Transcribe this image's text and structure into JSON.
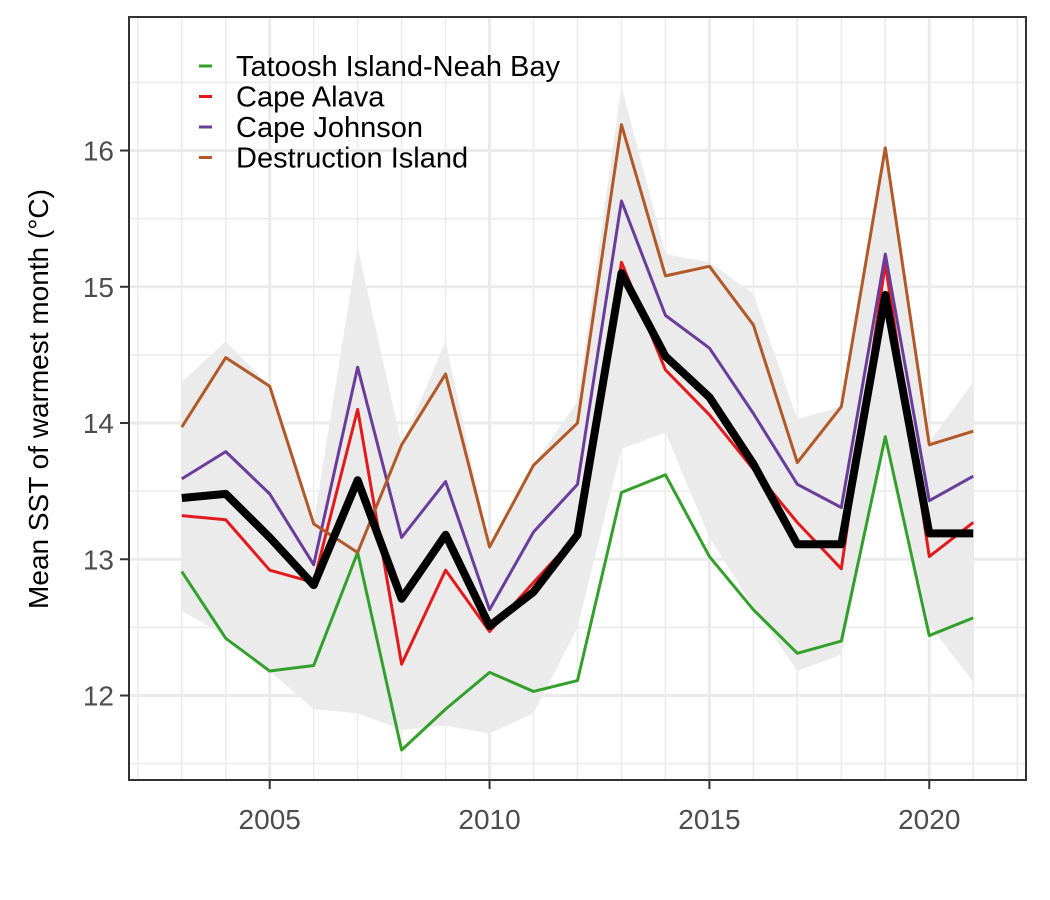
{
  "chart_data": {
    "type": "line",
    "title": "",
    "xlabel": "",
    "ylabel": "Mean SST of warmest month (°C)",
    "xlim": [
      2001.8,
      2022.2
    ],
    "ylim": [
      11.38,
      16.98
    ],
    "x_ticks": [
      2005,
      2010,
      2015,
      2020
    ],
    "y_ticks": [
      12,
      13,
      14,
      15,
      16
    ],
    "grid": true,
    "legend_position": "top-left inside",
    "x": [
      2003,
      2004,
      2005,
      2006,
      2007,
      2008,
      2009,
      2010,
      2011,
      2012,
      2013,
      2014,
      2015,
      2016,
      2017,
      2018,
      2019,
      2020,
      2021
    ],
    "series": [
      {
        "name": "Tatoosh Island-Neah Bay",
        "color": "#33a02c",
        "values": [
          12.91,
          12.42,
          12.18,
          12.22,
          13.05,
          11.6,
          11.9,
          12.17,
          12.03,
          12.11,
          13.49,
          13.62,
          13.02,
          12.63,
          12.31,
          12.4,
          13.9,
          12.44,
          12.57
        ]
      },
      {
        "name": "Cape Alava",
        "color": "#e31a1c",
        "values": [
          13.32,
          13.29,
          12.92,
          12.83,
          14.1,
          12.23,
          12.92,
          12.47,
          12.83,
          13.18,
          15.18,
          14.39,
          14.06,
          13.66,
          13.27,
          12.93,
          15.17,
          13.02,
          13.27
        ]
      },
      {
        "name": "Cape Johnson",
        "color": "#6a3d9a",
        "values": [
          13.59,
          13.79,
          13.48,
          12.96,
          14.41,
          13.16,
          13.57,
          12.63,
          13.2,
          13.55,
          15.63,
          14.79,
          14.55,
          14.07,
          13.55,
          13.38,
          15.24,
          13.43,
          13.61
        ]
      },
      {
        "name": "Destruction Island",
        "color": "#b15928",
        "values": [
          13.97,
          14.48,
          14.27,
          13.26,
          13.05,
          13.84,
          14.36,
          13.09,
          13.69,
          14.0,
          16.19,
          15.08,
          15.15,
          14.72,
          13.71,
          14.12,
          16.02,
          13.84,
          13.94
        ]
      }
    ],
    "mean_series": {
      "color": "#000000",
      "values": [
        13.45,
        13.48,
        13.16,
        12.81,
        13.58,
        12.71,
        13.18,
        12.51,
        12.76,
        13.18,
        15.1,
        14.49,
        14.19,
        13.7,
        13.11,
        13.11,
        14.94,
        13.19,
        13.19
      ]
    },
    "ribbon": {
      "color": "#ebebeb",
      "lower": [
        12.62,
        12.44,
        12.18,
        11.9,
        11.87,
        11.75,
        11.78,
        11.72,
        11.87,
        12.5,
        13.81,
        13.93,
        13.16,
        12.65,
        12.18,
        12.3,
        13.92,
        12.52,
        12.1
      ],
      "upper": [
        14.3,
        14.6,
        14.27,
        13.27,
        15.29,
        13.84,
        14.6,
        13.09,
        13.69,
        14.16,
        16.47,
        15.24,
        15.18,
        14.95,
        14.03,
        14.12,
        16.03,
        13.86,
        14.3
      ]
    }
  }
}
